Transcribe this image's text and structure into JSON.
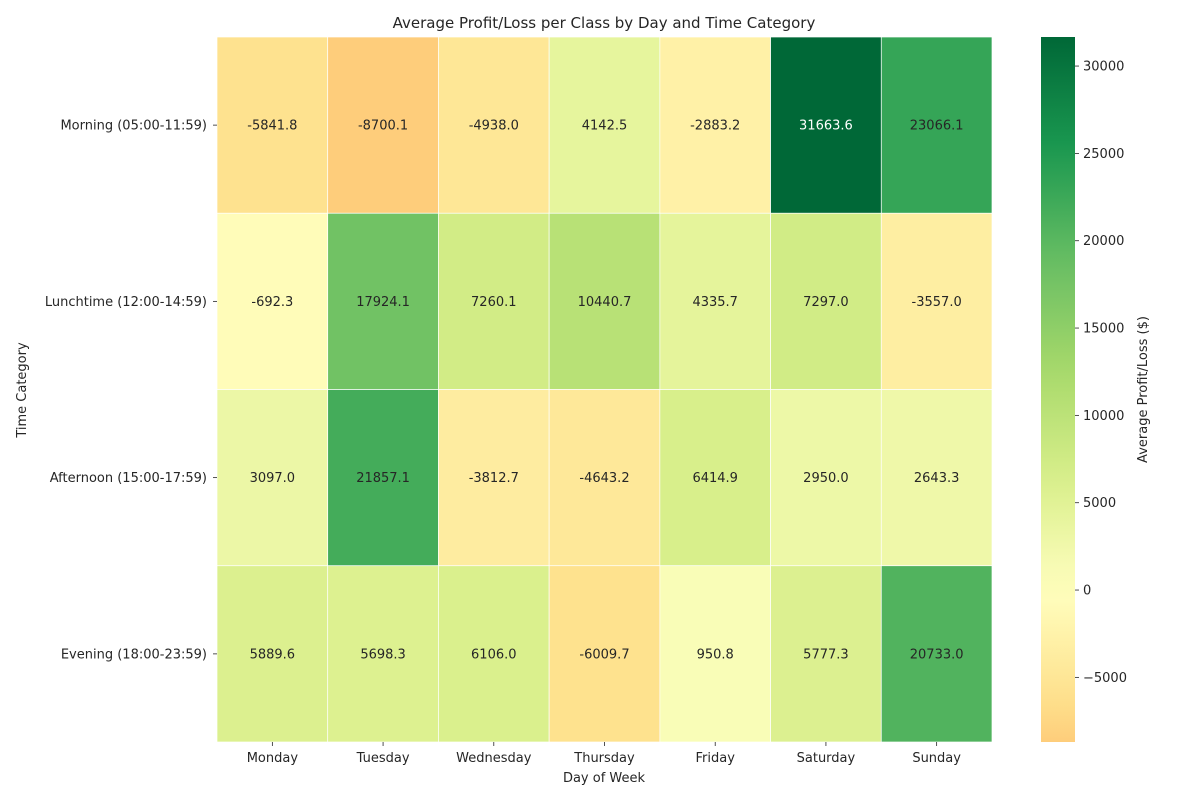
{
  "chart_data": {
    "type": "heatmap",
    "title": "Average Profit/Loss per Class by Day and Time Category",
    "xlabel": "Day of Week",
    "ylabel": "Time Category",
    "x_categories": [
      "Monday",
      "Tuesday",
      "Wednesday",
      "Thursday",
      "Friday",
      "Saturday",
      "Sunday"
    ],
    "y_categories": [
      "Morning (05:00-11:59)",
      "Lunchtime (12:00-14:59)",
      "Afternoon (15:00-17:59)",
      "Evening (18:00-23:59)"
    ],
    "values": [
      [
        -5841.8,
        -8700.1,
        -4938.0,
        4142.5,
        -2883.2,
        31663.6,
        23066.1
      ],
      [
        -692.3,
        17924.1,
        7260.1,
        10440.7,
        4335.7,
        7297.0,
        -3557.0
      ],
      [
        3097.0,
        21857.1,
        -3812.7,
        -4643.2,
        6414.9,
        2950.0,
        2643.3
      ],
      [
        5889.6,
        5698.3,
        6106.0,
        -6009.7,
        950.8,
        5777.3,
        20733.0
      ]
    ],
    "value_format": "0.0",
    "colormap": "RdYlGn",
    "center": 0,
    "vmin": -8700.1,
    "vmax": 31663.6,
    "colorbar": {
      "label": "Average Profit/Loss ($)",
      "ticks": [
        -5000,
        0,
        5000,
        10000,
        15000,
        20000,
        25000,
        30000
      ]
    },
    "grid": false
  }
}
